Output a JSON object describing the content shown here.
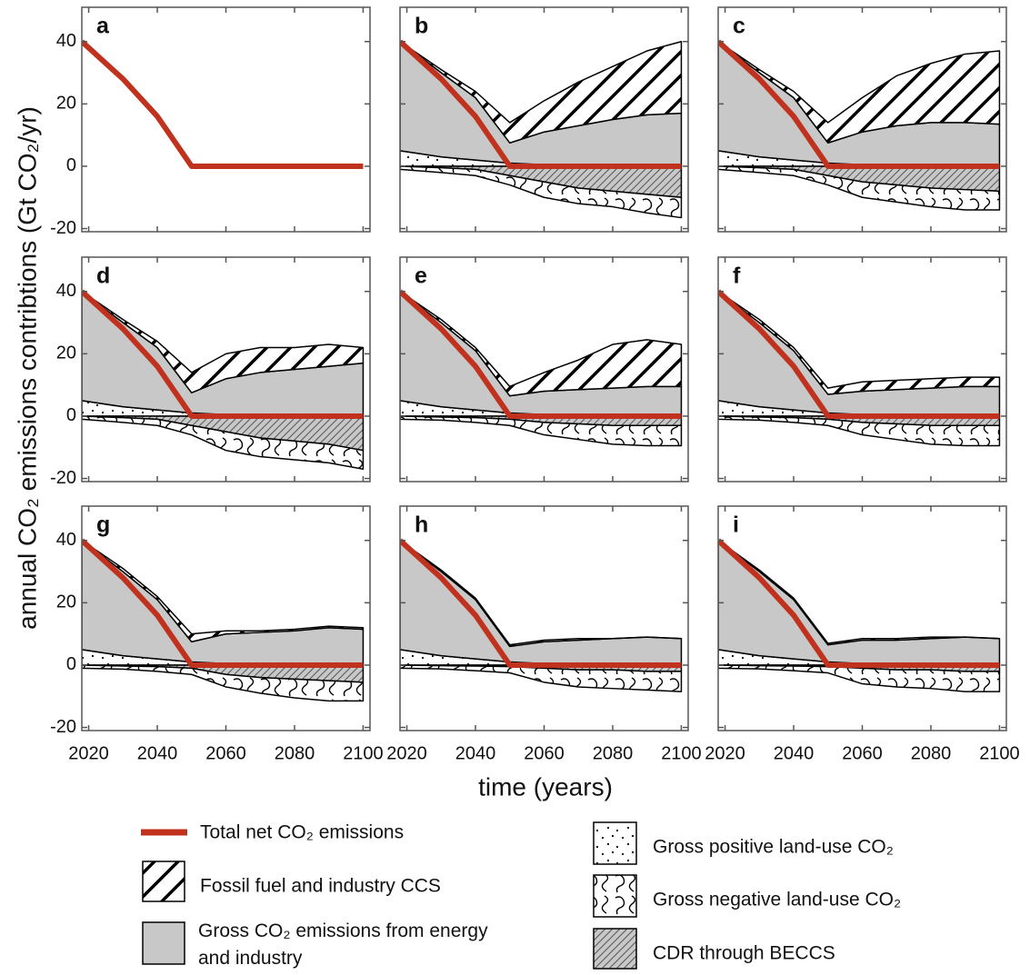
{
  "chart_data": {
    "type": "area",
    "ylabel": "annual CO₂ emissions contribtions (Gt CO₂/yr)",
    "xlabel": "time (years)",
    "x": [
      2018,
      2030,
      2040,
      2050,
      2060,
      2070,
      2080,
      2090,
      2100
    ],
    "xlim": [
      2018,
      2102
    ],
    "xticks": [
      2020,
      2040,
      2060,
      2080,
      2100
    ],
    "ylim": [
      -21,
      51
    ],
    "yticks": [
      -20,
      0,
      20,
      40
    ],
    "legend": {
      "net": {
        "name": "Total net CO₂ emissions",
        "color": "#c0321e"
      },
      "ccs": {
        "name": "Fossil fuel and industry CCS",
        "color": "#ffffff",
        "pattern": "hatch"
      },
      "gross": {
        "name": "Gross CO₂ emissions from energy and industry",
        "color": "#c8c8c8"
      },
      "pos_lu": {
        "name": "Gross positive land-use CO₂",
        "color": "#ffffff",
        "pattern": "dots"
      },
      "neg_lu": {
        "name": "Gross negative land-use CO₂",
        "color": "#ffffff",
        "pattern": "squiggle"
      },
      "beccs": {
        "name": "CDR through BECCS",
        "color": "#c8c8c8",
        "pattern": "dense"
      }
    },
    "panels": [
      {
        "label": "a",
        "net": [
          40,
          28,
          16,
          0,
          0,
          0,
          0,
          0,
          0
        ]
      },
      {
        "label": "b",
        "net": [
          40,
          28,
          16,
          0,
          0,
          0,
          0,
          0,
          0
        ],
        "pos_lu": [
          5,
          3,
          2,
          1,
          0.5,
          0.5,
          0.5,
          0.5,
          0.5
        ],
        "gross": [
          35,
          27,
          20,
          6.5,
          10.5,
          12.5,
          14.5,
          16,
          16.5
        ],
        "ccs": [
          0,
          1,
          2,
          6.5,
          10,
          14,
          17,
          20.5,
          23
        ],
        "beccs": [
          0,
          -0.5,
          -1,
          -3,
          -5,
          -7,
          -8,
          -9,
          -10
        ],
        "neg_lu": [
          -1,
          -1.5,
          -2,
          -3,
          -5,
          -5,
          -5,
          -6,
          -6.5
        ]
      },
      {
        "label": "c",
        "net": [
          40,
          28,
          16,
          0,
          0,
          0,
          0,
          0,
          0
        ],
        "pos_lu": [
          5,
          3,
          2,
          1,
          0.5,
          0.5,
          0.5,
          0.5,
          0.5
        ],
        "gross": [
          35,
          27,
          20,
          6.5,
          10.5,
          12.5,
          13.5,
          13.5,
          13
        ],
        "ccs": [
          0,
          1,
          2,
          6.5,
          11,
          16,
          19,
          22,
          23.5
        ],
        "beccs": [
          0,
          -0.5,
          -1,
          -3,
          -5,
          -6,
          -7,
          -7.5,
          -8
        ],
        "neg_lu": [
          -1,
          -1.5,
          -2,
          -3,
          -5,
          -5.5,
          -6,
          -6.5,
          -6
        ]
      },
      {
        "label": "d",
        "net": [
          40,
          28,
          16,
          0,
          0,
          0,
          0,
          0,
          0
        ],
        "pos_lu": [
          5,
          3,
          2,
          1,
          0.5,
          0.5,
          0.5,
          0.5,
          0.5
        ],
        "gross": [
          35,
          27,
          20,
          6.5,
          11.5,
          13.5,
          14.5,
          15.5,
          16.5
        ],
        "ccs": [
          0,
          1,
          2,
          6.5,
          8,
          8,
          7,
          7,
          5
        ],
        "beccs": [
          0,
          -0.5,
          -1,
          -3,
          -5,
          -7,
          -8,
          -9,
          -11
        ],
        "neg_lu": [
          -1,
          -1.5,
          -2,
          -3,
          -6,
          -6,
          -6,
          -6,
          -6
        ]
      },
      {
        "label": "e",
        "net": [
          40,
          28,
          16,
          0,
          0,
          0,
          0,
          0,
          0
        ],
        "pos_lu": [
          5,
          3,
          2,
          1,
          0.5,
          0.5,
          0.5,
          0.5,
          0.5
        ],
        "gross": [
          35,
          27,
          19,
          5.5,
          7.5,
          8,
          8.5,
          9,
          9
        ],
        "ccs": [
          0,
          1,
          1,
          3,
          6,
          9.5,
          14,
          15,
          13.5
        ],
        "beccs": [
          0,
          -0.3,
          -0.5,
          -1,
          -2,
          -2.5,
          -3,
          -3,
          -3
        ],
        "neg_lu": [
          -1,
          -1,
          -1.5,
          -2,
          -4,
          -5,
          -6,
          -6.5,
          -6.5
        ]
      },
      {
        "label": "f",
        "net": [
          40,
          28,
          16,
          0,
          0,
          0,
          0,
          0,
          0
        ],
        "pos_lu": [
          5,
          3,
          2,
          1,
          0.5,
          0.5,
          0.5,
          0.5,
          0.5
        ],
        "gross": [
          35,
          27,
          19,
          6,
          7.5,
          8,
          8.5,
          9,
          9
        ],
        "ccs": [
          0,
          1,
          1,
          2,
          3,
          3,
          3,
          3,
          3
        ],
        "beccs": [
          0,
          -0.3,
          -0.5,
          -1,
          -2,
          -2.5,
          -3,
          -3,
          -3
        ],
        "neg_lu": [
          -1,
          -1,
          -1.5,
          -2,
          -4,
          -5,
          -6,
          -6.5,
          -6.5
        ]
      },
      {
        "label": "g",
        "net": [
          40,
          28,
          16,
          0,
          0,
          0,
          0,
          0,
          0
        ],
        "pos_lu": [
          5,
          3,
          2,
          1,
          0.5,
          0.5,
          0.5,
          0.5,
          0.5
        ],
        "gross": [
          35,
          27,
          19,
          6.5,
          9.5,
          10,
          10.5,
          11.5,
          11
        ],
        "ccs": [
          0,
          1,
          1,
          2.5,
          1,
          0.5,
          0.5,
          0.5,
          0.5
        ],
        "beccs": [
          0,
          -0.3,
          -0.5,
          -1,
          -3,
          -4,
          -4.5,
          -5,
          -5.5
        ],
        "neg_lu": [
          -1,
          -1,
          -1.5,
          -2,
          -4,
          -5,
          -6,
          -6.5,
          -6
        ]
      },
      {
        "label": "h",
        "net": [
          40,
          28,
          16,
          0,
          0,
          0,
          0,
          0,
          0
        ],
        "pos_lu": [
          5,
          3,
          2,
          1,
          0.5,
          0.5,
          0.5,
          0.5,
          0.5
        ],
        "gross": [
          35,
          27,
          19,
          5,
          7,
          7.5,
          8,
          8.5,
          8
        ],
        "ccs": [
          0,
          0.5,
          0.5,
          0.5,
          0.5,
          0.5,
          0,
          0,
          0
        ],
        "beccs": [
          0,
          -0.2,
          -0.3,
          -0.5,
          -1,
          -1.5,
          -1.5,
          -2,
          -2
        ],
        "neg_lu": [
          -1,
          -1,
          -1.5,
          -2,
          -4.5,
          -5.5,
          -6,
          -6,
          -6.5
        ]
      },
      {
        "label": "i",
        "net": [
          40,
          28,
          16,
          0,
          0,
          0,
          0,
          0,
          0
        ],
        "pos_lu": [
          5,
          3,
          2,
          1,
          0.5,
          0.5,
          0.5,
          0.5,
          0.5
        ],
        "gross": [
          35,
          27,
          19,
          5.5,
          7.5,
          7.5,
          8,
          8.5,
          8
        ],
        "ccs": [
          0,
          0.5,
          0.5,
          0.5,
          0.5,
          0.5,
          0.5,
          0,
          0
        ],
        "beccs": [
          0,
          -0.2,
          -0.3,
          -0.5,
          -1,
          -1.5,
          -1.5,
          -2,
          -2
        ],
        "neg_lu": [
          -1,
          -1,
          -1.5,
          -2,
          -5,
          -5.5,
          -6,
          -6.5,
          -6.5
        ]
      }
    ]
  }
}
